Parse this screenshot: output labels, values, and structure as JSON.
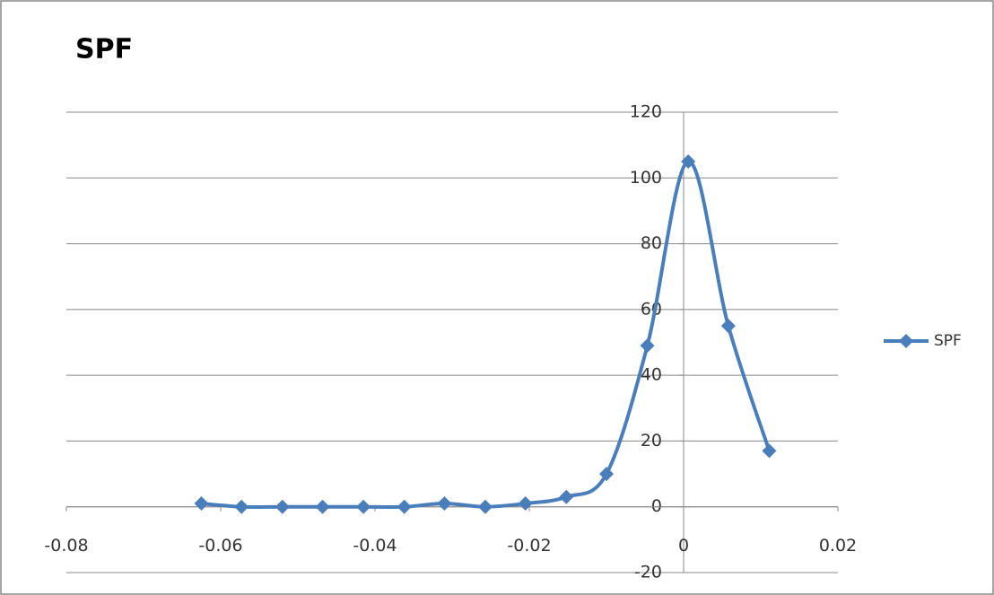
{
  "chart_data": {
    "type": "scatter",
    "title": "SPF",
    "smooth": true,
    "legend": "right",
    "grid": true,
    "series": [
      {
        "name": "SPF",
        "color": "#4a7ebb",
        "x": [
          -0.0625,
          -0.0573,
          -0.052,
          -0.0468,
          -0.0415,
          -0.0362,
          -0.031,
          -0.0257,
          -0.0205,
          -0.0152,
          -0.01,
          -0.0047,
          0.0006,
          0.0058,
          0.0111
        ],
        "values": [
          1,
          0,
          0,
          0,
          0,
          0,
          1,
          0,
          1,
          3,
          10,
          49,
          105,
          55,
          17
        ]
      }
    ],
    "xlim": [
      -0.08,
      0.02
    ],
    "xticks": [
      -0.08,
      -0.06,
      -0.04,
      -0.02,
      0,
      0.02
    ],
    "ylim": [
      -20,
      120
    ],
    "yticks": [
      -20,
      0,
      20,
      40,
      60,
      80,
      100,
      120
    ]
  }
}
